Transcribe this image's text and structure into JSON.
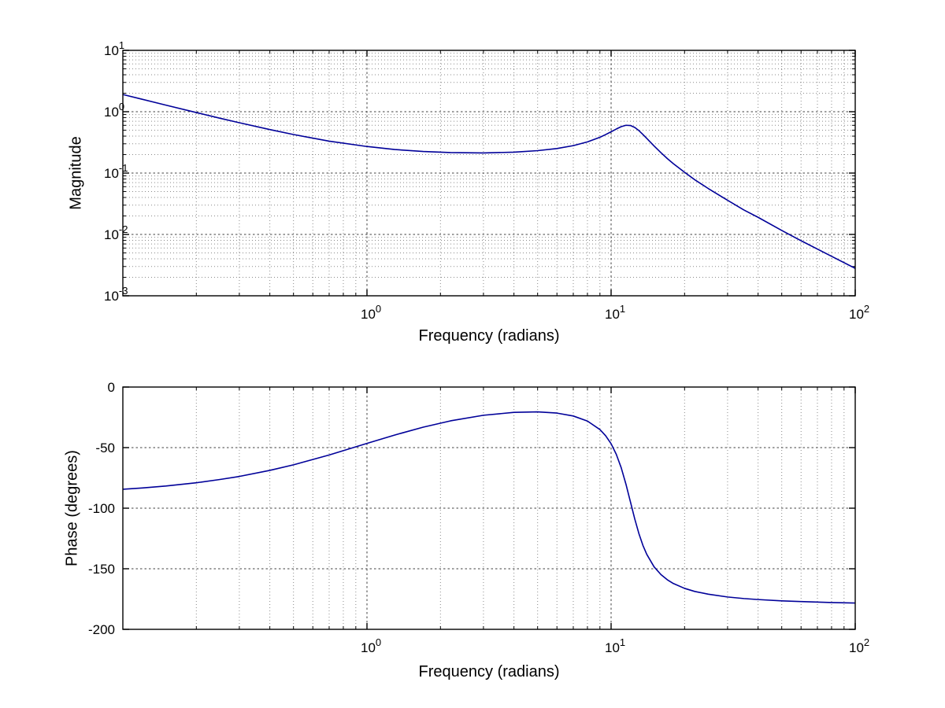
{
  "figure": {
    "background": "#ffffff",
    "line_color": "#000099",
    "grid_major_color": "#404040",
    "grid_minor_color": "#8a8a8a",
    "axis_color": "#000000"
  },
  "chart_data": [
    {
      "id": "magnitude",
      "type": "line",
      "x_scale": "log",
      "y_scale": "log",
      "xlim": [
        0.1,
        100
      ],
      "ylim": [
        0.001,
        10
      ],
      "xlabel": "Frequency (radians)",
      "ylabel": "Magnitude",
      "grid": "major+minor, dotted, box on",
      "legend": "none",
      "x_ticks": [
        1,
        10,
        100
      ],
      "x_tick_labels": [
        {
          "base": "10",
          "exp": "0"
        },
        {
          "base": "10",
          "exp": "1"
        },
        {
          "base": "10",
          "exp": "2"
        }
      ],
      "y_ticks": [
        10,
        1,
        0.1,
        0.01,
        0.001
      ],
      "y_tick_labels": [
        {
          "base": "10",
          "exp": "1"
        },
        {
          "base": "10",
          "exp": "0"
        },
        {
          "base": "10",
          "exp": "-1"
        },
        {
          "base": "10",
          "exp": "-2"
        },
        {
          "base": "10",
          "exp": "-3"
        }
      ],
      "series": [
        {
          "name": "magnitude-response",
          "color": "#000099",
          "x": [
            0.1,
            0.12,
            0.15,
            0.2,
            0.25,
            0.3,
            0.4,
            0.5,
            0.7,
            1,
            1.3,
            1.7,
            2.2,
            3,
            4,
            5,
            6,
            7,
            8,
            9,
            9.5,
            10,
            10.5,
            11,
            11.5,
            12,
            12.5,
            13,
            13.5,
            14,
            15,
            16,
            17,
            18,
            20,
            22,
            25,
            30,
            35,
            40,
            50,
            60,
            80,
            100
          ],
          "y": [
            1.909,
            1.595,
            1.281,
            0.969,
            0.783,
            0.661,
            0.512,
            0.425,
            0.331,
            0.271,
            0.242,
            0.225,
            0.216,
            0.213,
            0.219,
            0.232,
            0.251,
            0.28,
            0.322,
            0.383,
            0.424,
            0.471,
            0.522,
            0.571,
            0.601,
            0.596,
            0.554,
            0.492,
            0.426,
            0.367,
            0.276,
            0.215,
            0.172,
            0.142,
            0.103,
            0.078,
            0.056,
            0.036,
            0.025,
            0.019,
            0.0116,
            0.0079,
            0.0044,
            0.0028
          ]
        }
      ]
    },
    {
      "id": "phase",
      "type": "line",
      "x_scale": "log",
      "y_scale": "linear",
      "xlim": [
        0.1,
        100
      ],
      "ylim": [
        -200,
        0
      ],
      "xlabel": "Frequency (radians)",
      "ylabel": "Phase (degrees)",
      "grid": "major dotted, x-minor dotted, box on",
      "legend": "none",
      "x_ticks": [
        1,
        10,
        100
      ],
      "x_tick_labels": [
        {
          "base": "10",
          "exp": "0"
        },
        {
          "base": "10",
          "exp": "1"
        },
        {
          "base": "10",
          "exp": "2"
        }
      ],
      "y_ticks": [
        0,
        -50,
        -100,
        -150,
        -200
      ],
      "y_tick_labels": [
        "0",
        "-50",
        "-100",
        "-150",
        "-200"
      ],
      "series": [
        {
          "name": "phase-response",
          "color": "#000099",
          "x": [
            0.1,
            0.12,
            0.15,
            0.2,
            0.25,
            0.3,
            0.4,
            0.5,
            0.7,
            1,
            1.3,
            1.7,
            2.2,
            3,
            4,
            5,
            6,
            7,
            8,
            9,
            9.5,
            10,
            10.5,
            11,
            11.5,
            12,
            12.5,
            13,
            13.5,
            14,
            15,
            16,
            17,
            18,
            20,
            22,
            25,
            30,
            35,
            40,
            50,
            60,
            80,
            100
          ],
          "y": [
            -84.4,
            -83.3,
            -81.7,
            -79.0,
            -76.3,
            -73.8,
            -68.8,
            -64.2,
            -56.1,
            -46.5,
            -39.6,
            -33.1,
            -27.9,
            -23.3,
            -20.9,
            -20.5,
            -21.5,
            -23.9,
            -28.1,
            -35.1,
            -40.2,
            -46.8,
            -55.5,
            -66.6,
            -80.1,
            -94.8,
            -108.9,
            -121.0,
            -130.7,
            -138.1,
            -148.4,
            -154.8,
            -159.1,
            -162.2,
            -166.2,
            -168.7,
            -171.0,
            -173.3,
            -174.6,
            -175.4,
            -176.5,
            -177.1,
            -177.9,
            -178.3
          ]
        }
      ]
    }
  ]
}
